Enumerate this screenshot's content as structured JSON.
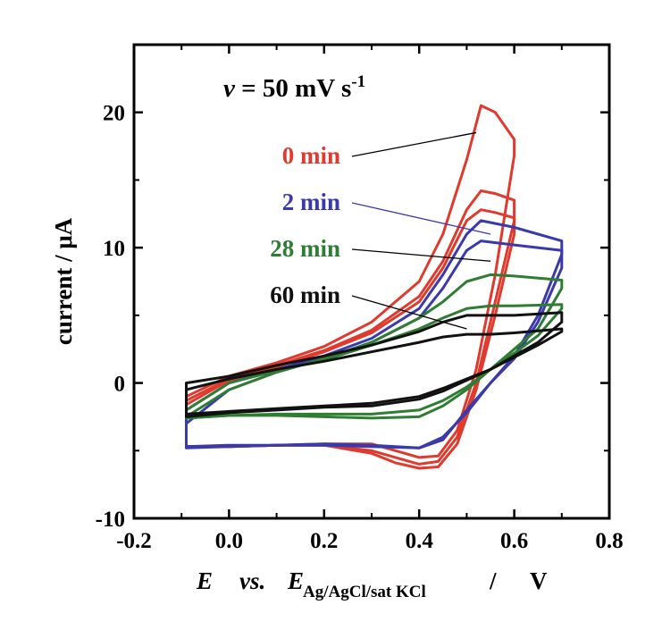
{
  "chart_data": {
    "type": "line",
    "annotation": {
      "symbol": "v",
      "eq": " = 50 mV s",
      "sup": "-1"
    },
    "xlabel": {
      "italic_e": "E",
      "vs": "vs.",
      "italic_e2": "E",
      "subscript": "Ag/AgCl/sat KCl",
      "slash": "/",
      "unit": "V"
    },
    "ylabel": "current  /  μA",
    "xlim": [
      -0.2,
      0.8
    ],
    "ylim": [
      -10,
      25
    ],
    "x_ticks": [
      -0.2,
      0.0,
      0.2,
      0.4,
      0.6,
      0.8
    ],
    "x_tick_labels": [
      "-0.2",
      "0.0",
      "0.2",
      "0.4",
      "0.6",
      "0.8"
    ],
    "y_ticks": [
      -10,
      0,
      10,
      20
    ],
    "y_tick_labels": [
      "-10",
      "0",
      "10",
      "20"
    ],
    "grid": false,
    "legend_placement": "center, with pointer lines to curves",
    "series": [
      {
        "name": "0 min",
        "color": "#e03a2e",
        "pointer": [
          0.52,
          18.5
        ],
        "cycles": [
          {
            "forward": [
              [
                -0.09,
                -1.0
              ],
              [
                0.0,
                0.5
              ],
              [
                0.1,
                1.5
              ],
              [
                0.2,
                2.7
              ],
              [
                0.3,
                4.5
              ],
              [
                0.4,
                7.5
              ],
              [
                0.45,
                11.0
              ],
              [
                0.5,
                16.5
              ],
              [
                0.53,
                20.5
              ],
              [
                0.56,
                20.0
              ],
              [
                0.6,
                18.0
              ]
            ],
            "reverse": [
              [
                0.6,
                16.8
              ],
              [
                0.56,
                8.0
              ],
              [
                0.52,
                1.0
              ],
              [
                0.48,
                -3.5
              ],
              [
                0.44,
                -5.4
              ],
              [
                0.4,
                -5.5
              ],
              [
                0.35,
                -5.0
              ],
              [
                0.3,
                -4.5
              ],
              [
                0.2,
                -4.5
              ],
              [
                0.1,
                -4.6
              ],
              [
                0.0,
                -4.7
              ],
              [
                -0.09,
                -4.7
              ]
            ]
          },
          {
            "forward": [
              [
                -0.09,
                -1.3
              ],
              [
                0.0,
                0.3
              ],
              [
                0.1,
                1.3
              ],
              [
                0.2,
                2.4
              ],
              [
                0.3,
                3.9
              ],
              [
                0.4,
                6.4
              ],
              [
                0.45,
                9.0
              ],
              [
                0.5,
                12.8
              ],
              [
                0.53,
                14.2
              ],
              [
                0.56,
                14.0
              ],
              [
                0.6,
                13.5
              ]
            ],
            "reverse": [
              [
                0.6,
                12.0
              ],
              [
                0.56,
                6.0
              ],
              [
                0.52,
                0.0
              ],
              [
                0.48,
                -4.0
              ],
              [
                0.44,
                -5.8
              ],
              [
                0.4,
                -6.0
              ],
              [
                0.35,
                -5.5
              ],
              [
                0.3,
                -5.0
              ],
              [
                0.2,
                -4.6
              ],
              [
                0.1,
                -4.6
              ],
              [
                0.0,
                -4.7
              ],
              [
                -0.09,
                -4.7
              ]
            ]
          },
          {
            "forward": [
              [
                -0.09,
                -1.6
              ],
              [
                0.0,
                0.2
              ],
              [
                0.1,
                1.2
              ],
              [
                0.2,
                2.3
              ],
              [
                0.3,
                3.7
              ],
              [
                0.4,
                6.0
              ],
              [
                0.45,
                8.5
              ],
              [
                0.5,
                12.0
              ],
              [
                0.53,
                12.8
              ],
              [
                0.56,
                12.6
              ],
              [
                0.6,
                12.2
              ]
            ],
            "reverse": [
              [
                0.6,
                11.0
              ],
              [
                0.56,
                5.0
              ],
              [
                0.52,
                -0.5
              ],
              [
                0.48,
                -4.5
              ],
              [
                0.44,
                -6.2
              ],
              [
                0.4,
                -6.3
              ],
              [
                0.35,
                -5.9
              ],
              [
                0.3,
                -5.2
              ],
              [
                0.2,
                -4.6
              ],
              [
                0.1,
                -4.6
              ],
              [
                0.0,
                -4.7
              ],
              [
                -0.09,
                -4.7
              ]
            ]
          }
        ]
      },
      {
        "name": "2 min",
        "color": "#3a3aaa",
        "pointer": [
          0.55,
          11.0
        ],
        "cycles": [
          {
            "forward": [
              [
                -0.09,
                -2.0
              ],
              [
                0.0,
                0.0
              ],
              [
                0.1,
                1.0
              ],
              [
                0.2,
                2.0
              ],
              [
                0.3,
                3.3
              ],
              [
                0.4,
                5.5
              ],
              [
                0.45,
                8.0
              ],
              [
                0.5,
                11.0
              ],
              [
                0.53,
                12.0
              ],
              [
                0.6,
                11.5
              ],
              [
                0.65,
                11.0
              ],
              [
                0.7,
                10.5
              ]
            ],
            "reverse": [
              [
                0.7,
                9.5
              ],
              [
                0.65,
                5.0
              ],
              [
                0.6,
                2.0
              ],
              [
                0.55,
                0.0
              ],
              [
                0.5,
                -2.0
              ],
              [
                0.45,
                -4.2
              ],
              [
                0.4,
                -4.8
              ],
              [
                0.3,
                -4.6
              ],
              [
                0.2,
                -4.5
              ],
              [
                0.1,
                -4.6
              ],
              [
                0.0,
                -4.6
              ],
              [
                -0.09,
                -4.7
              ]
            ]
          },
          {
            "forward": [
              [
                -0.09,
                -3.0
              ],
              [
                0.0,
                -0.5
              ],
              [
                0.1,
                0.8
              ],
              [
                0.2,
                1.8
              ],
              [
                0.3,
                3.0
              ],
              [
                0.4,
                4.8
              ],
              [
                0.45,
                7.0
              ],
              [
                0.5,
                9.8
              ],
              [
                0.53,
                10.5
              ],
              [
                0.6,
                10.2
              ],
              [
                0.7,
                9.8
              ]
            ],
            "reverse": [
              [
                0.7,
                8.5
              ],
              [
                0.65,
                4.5
              ],
              [
                0.6,
                1.8
              ],
              [
                0.55,
                0.0
              ],
              [
                0.5,
                -2.2
              ],
              [
                0.45,
                -4.0
              ],
              [
                0.4,
                -4.8
              ],
              [
                0.3,
                -4.7
              ],
              [
                0.2,
                -4.6
              ],
              [
                0.1,
                -4.6
              ],
              [
                0.0,
                -4.7
              ],
              [
                -0.09,
                -4.8
              ]
            ]
          }
        ]
      },
      {
        "name": "28 min",
        "color": "#2e7d32",
        "pointer": [
          0.55,
          9.0
        ],
        "cycles": [
          {
            "forward": [
              [
                -0.09,
                -2.5
              ],
              [
                0.0,
                -0.5
              ],
              [
                0.1,
                0.8
              ],
              [
                0.2,
                1.8
              ],
              [
                0.3,
                3.0
              ],
              [
                0.4,
                4.8
              ],
              [
                0.45,
                6.0
              ],
              [
                0.5,
                7.5
              ],
              [
                0.55,
                8.0
              ],
              [
                0.6,
                7.9
              ],
              [
                0.7,
                7.6
              ]
            ],
            "reverse": [
              [
                0.7,
                7.0
              ],
              [
                0.65,
                4.0
              ],
              [
                0.6,
                2.5
              ],
              [
                0.55,
                1.0
              ],
              [
                0.5,
                -0.5
              ],
              [
                0.45,
                -1.7
              ],
              [
                0.4,
                -2.5
              ],
              [
                0.3,
                -2.6
              ],
              [
                0.2,
                -2.5
              ],
              [
                0.1,
                -2.4
              ],
              [
                0.0,
                -2.4
              ],
              [
                -0.09,
                -2.6
              ]
            ]
          },
          {
            "forward": [
              [
                -0.09,
                -2.0
              ],
              [
                0.0,
                0.0
              ],
              [
                0.1,
                0.9
              ],
              [
                0.2,
                1.7
              ],
              [
                0.3,
                2.8
              ],
              [
                0.4,
                4.0
              ],
              [
                0.45,
                4.8
              ],
              [
                0.5,
                5.5
              ],
              [
                0.55,
                5.7
              ],
              [
                0.6,
                5.7
              ],
              [
                0.7,
                5.8
              ]
            ],
            "reverse": [
              [
                0.7,
                5.5
              ],
              [
                0.65,
                3.5
              ],
              [
                0.6,
                2.2
              ],
              [
                0.55,
                1.0
              ],
              [
                0.5,
                -0.3
              ],
              [
                0.45,
                -1.3
              ],
              [
                0.4,
                -2.0
              ],
              [
                0.3,
                -2.3
              ],
              [
                0.2,
                -2.3
              ],
              [
                0.1,
                -2.3
              ],
              [
                0.0,
                -2.4
              ],
              [
                -0.09,
                -2.6
              ]
            ]
          }
        ]
      },
      {
        "name": "60 min",
        "color": "#111111",
        "pointer": [
          0.5,
          4.0
        ],
        "cycles": [
          {
            "forward": [
              [
                -0.09,
                0.0
              ],
              [
                0.0,
                0.5
              ],
              [
                0.1,
                1.3
              ],
              [
                0.2,
                2.0
              ],
              [
                0.3,
                2.8
              ],
              [
                0.4,
                3.8
              ],
              [
                0.45,
                4.5
              ],
              [
                0.5,
                5.0
              ],
              [
                0.55,
                5.0
              ],
              [
                0.6,
                5.0
              ],
              [
                0.7,
                5.2
              ]
            ],
            "reverse": [
              [
                0.7,
                4.5
              ],
              [
                0.65,
                3.0
              ],
              [
                0.6,
                2.0
              ],
              [
                0.55,
                1.0
              ],
              [
                0.5,
                0.2
              ],
              [
                0.45,
                -0.6
              ],
              [
                0.4,
                -1.2
              ],
              [
                0.3,
                -1.7
              ],
              [
                0.2,
                -1.8
              ],
              [
                0.1,
                -2.0
              ],
              [
                0.0,
                -2.2
              ],
              [
                -0.09,
                -2.5
              ]
            ]
          },
          {
            "forward": [
              [
                -0.09,
                -0.5
              ],
              [
                0.0,
                0.3
              ],
              [
                0.1,
                1.0
              ],
              [
                0.2,
                1.6
              ],
              [
                0.3,
                2.3
              ],
              [
                0.4,
                3.0
              ],
              [
                0.45,
                3.4
              ],
              [
                0.5,
                3.6
              ],
              [
                0.55,
                3.6
              ],
              [
                0.6,
                3.7
              ],
              [
                0.7,
                4.0
              ]
            ],
            "reverse": [
              [
                0.7,
                3.8
              ],
              [
                0.65,
                2.8
              ],
              [
                0.6,
                1.9
              ],
              [
                0.55,
                1.0
              ],
              [
                0.5,
                0.3
              ],
              [
                0.45,
                -0.4
              ],
              [
                0.4,
                -1.0
              ],
              [
                0.3,
                -1.5
              ],
              [
                0.2,
                -1.7
              ],
              [
                0.1,
                -1.9
              ],
              [
                0.0,
                -2.1
              ],
              [
                -0.09,
                -2.3
              ]
            ]
          }
        ]
      }
    ]
  }
}
